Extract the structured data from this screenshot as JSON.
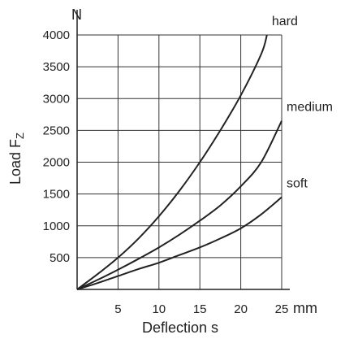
{
  "chart_data": {
    "type": "line",
    "xlabel": "Deflection s",
    "ylabel": "Load F",
    "ylabel_sub": "Z",
    "x_unit": "mm",
    "y_unit": "N",
    "xlim": [
      0,
      25
    ],
    "ylim": [
      0,
      4000
    ],
    "x_ticks": [
      5,
      10,
      15,
      20,
      25
    ],
    "y_ticks": [
      500,
      1000,
      1500,
      2000,
      2500,
      3000,
      3500,
      4000
    ],
    "grid": true,
    "series": [
      {
        "name": "hard",
        "x": [
          0,
          2.5,
          5,
          7.5,
          10,
          12.5,
          15,
          17.5,
          20,
          22.5,
          23.2
        ],
        "y": [
          0,
          240,
          500,
          800,
          1150,
          1550,
          2000,
          2500,
          3050,
          3700,
          4000
        ]
      },
      {
        "name": "medium",
        "x": [
          0,
          2.5,
          5,
          7.5,
          10,
          12.5,
          15,
          17.5,
          20,
          22.5,
          25
        ],
        "y": [
          0,
          150,
          310,
          480,
          660,
          860,
          1080,
          1320,
          1620,
          2000,
          2650
        ]
      },
      {
        "name": "soft",
        "x": [
          0,
          2.5,
          5,
          7.5,
          10,
          12.5,
          15,
          17.5,
          20,
          22.5,
          25
        ],
        "y": [
          0,
          100,
          210,
          320,
          420,
          540,
          660,
          800,
          960,
          1180,
          1450
        ]
      }
    ]
  }
}
